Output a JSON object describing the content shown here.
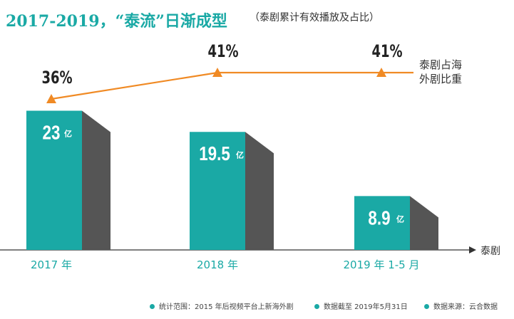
{
  "title": "2017-2019，“泰流”日渐成型",
  "subtitle": "（泰剧累计有效播放及占比）",
  "chart_data": {
    "type": "bar",
    "categories": [
      "2017 年",
      "2018 年",
      "2019 年 1-5 月"
    ],
    "series": [
      {
        "name": "泰剧",
        "values": [
          23,
          19.5,
          8.9
        ],
        "unit": "亿",
        "labels": [
          "23",
          "19.5",
          "8.9"
        ],
        "color": "#1aa9a5"
      },
      {
        "name": "泰剧占海外剧比重",
        "type": "line",
        "values": [
          36,
          41,
          41
        ],
        "labels": [
          "36%",
          "41%",
          "41%"
        ],
        "color": "#f08a24"
      }
    ],
    "xlabel": "泰剧",
    "line_legend": [
      "泰剧占海",
      "外剧比重"
    ]
  },
  "footnotes": [
    "统计范围：2015 年后视频平台上新海外剧",
    "数据截至 2019年5月31日",
    "数据来源：云合数据"
  ]
}
